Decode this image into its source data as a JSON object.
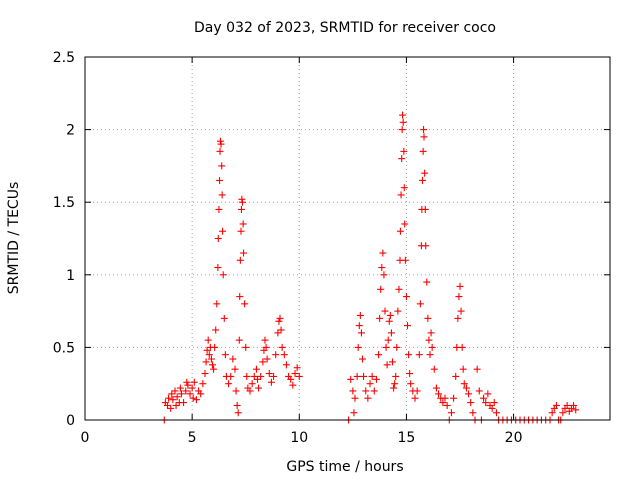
{
  "chart_data": {
    "type": "scatter",
    "title": "Day 032 of 2023, SRMTID for receiver coco",
    "xlabel": "GPS time / hours",
    "ylabel": "SRMTID / TECUs",
    "xlim": [
      0,
      24.5
    ],
    "ylim": [
      0,
      2.5
    ],
    "xticks": [
      0,
      5,
      10,
      15,
      20
    ],
    "xtick_labels": [
      "0",
      "5",
      "10",
      "15",
      "20"
    ],
    "yticks": [
      0,
      0.5,
      1,
      1.5,
      2,
      2.5
    ],
    "ytick_labels": [
      "0",
      "0.5",
      "1",
      "1.5",
      "2",
      "2.5"
    ],
    "grid": true,
    "marker": "+",
    "marker_color": "#ff0000",
    "series": [
      {
        "name": "SRMTID",
        "points": [
          [
            3.7,
            0.0
          ],
          [
            3.75,
            0.12
          ],
          [
            3.85,
            0.1
          ],
          [
            3.9,
            0.15
          ],
          [
            4.0,
            0.08
          ],
          [
            4.05,
            0.18
          ],
          [
            4.1,
            0.14
          ],
          [
            4.2,
            0.2
          ],
          [
            4.25,
            0.1
          ],
          [
            4.3,
            0.16
          ],
          [
            4.4,
            0.12
          ],
          [
            4.45,
            0.22
          ],
          [
            4.5,
            0.18
          ],
          [
            4.6,
            0.12
          ],
          [
            4.7,
            0.2
          ],
          [
            4.75,
            0.26
          ],
          [
            4.8,
            0.24
          ],
          [
            4.9,
            0.18
          ],
          [
            5.0,
            0.22
          ],
          [
            5.05,
            0.15
          ],
          [
            5.1,
            0.26
          ],
          [
            5.2,
            0.14
          ],
          [
            5.3,
            0.2
          ],
          [
            5.4,
            0.18
          ],
          [
            5.5,
            0.25
          ],
          [
            5.6,
            0.32
          ],
          [
            5.65,
            0.4
          ],
          [
            5.7,
            0.48
          ],
          [
            5.75,
            0.55
          ],
          [
            5.8,
            0.45
          ],
          [
            5.85,
            0.5
          ],
          [
            5.9,
            0.42
          ],
          [
            5.95,
            0.38
          ],
          [
            6.0,
            0.35
          ],
          [
            6.05,
            0.5
          ],
          [
            6.1,
            0.62
          ],
          [
            6.15,
            0.8
          ],
          [
            6.2,
            1.05
          ],
          [
            6.22,
            1.25
          ],
          [
            6.25,
            1.45
          ],
          [
            6.28,
            1.65
          ],
          [
            6.3,
            1.85
          ],
          [
            6.32,
            1.92
          ],
          [
            6.35,
            1.9
          ],
          [
            6.38,
            1.75
          ],
          [
            6.4,
            1.55
          ],
          [
            6.42,
            1.3
          ],
          [
            6.45,
            1.0
          ],
          [
            6.5,
            0.7
          ],
          [
            6.55,
            0.45
          ],
          [
            6.6,
            0.3
          ],
          [
            6.7,
            0.25
          ],
          [
            6.8,
            0.3
          ],
          [
            6.9,
            0.42
          ],
          [
            7.0,
            0.35
          ],
          [
            7.05,
            0.2
          ],
          [
            7.1,
            0.1
          ],
          [
            7.15,
            0.05
          ],
          [
            7.2,
            0.55
          ],
          [
            7.22,
            0.85
          ],
          [
            7.25,
            1.1
          ],
          [
            7.28,
            1.3
          ],
          [
            7.3,
            1.45
          ],
          [
            7.32,
            1.52
          ],
          [
            7.35,
            1.5
          ],
          [
            7.38,
            1.35
          ],
          [
            7.4,
            1.15
          ],
          [
            7.45,
            0.8
          ],
          [
            7.5,
            0.5
          ],
          [
            7.55,
            0.3
          ],
          [
            7.6,
            0.22
          ],
          [
            7.7,
            0.2
          ],
          [
            7.8,
            0.25
          ],
          [
            7.9,
            0.3
          ],
          [
            8.0,
            0.35
          ],
          [
            8.05,
            0.28
          ],
          [
            8.1,
            0.22
          ],
          [
            8.2,
            0.3
          ],
          [
            8.3,
            0.4
          ],
          [
            8.35,
            0.48
          ],
          [
            8.4,
            0.55
          ],
          [
            8.45,
            0.5
          ],
          [
            8.5,
            0.42
          ],
          [
            8.6,
            0.32
          ],
          [
            8.7,
            0.26
          ],
          [
            8.8,
            0.3
          ],
          [
            8.9,
            0.45
          ],
          [
            9.0,
            0.6
          ],
          [
            9.05,
            0.68
          ],
          [
            9.1,
            0.7
          ],
          [
            9.15,
            0.62
          ],
          [
            9.2,
            0.5
          ],
          [
            9.3,
            0.45
          ],
          [
            9.4,
            0.38
          ],
          [
            9.5,
            0.3
          ],
          [
            9.6,
            0.28
          ],
          [
            9.7,
            0.24
          ],
          [
            9.8,
            0.32
          ],
          [
            9.9,
            0.36
          ],
          [
            10.0,
            0.3
          ],
          [
            12.3,
            0.0
          ],
          [
            12.4,
            0.28
          ],
          [
            12.5,
            0.2
          ],
          [
            12.55,
            0.05
          ],
          [
            12.6,
            0.15
          ],
          [
            12.7,
            0.3
          ],
          [
            12.75,
            0.5
          ],
          [
            12.8,
            0.65
          ],
          [
            12.85,
            0.72
          ],
          [
            12.9,
            0.6
          ],
          [
            12.95,
            0.42
          ],
          [
            13.0,
            0.3
          ],
          [
            13.1,
            0.2
          ],
          [
            13.2,
            0.15
          ],
          [
            13.3,
            0.25
          ],
          [
            13.4,
            0.3
          ],
          [
            13.5,
            0.2
          ],
          [
            13.6,
            0.28
          ],
          [
            13.7,
            0.45
          ],
          [
            13.75,
            0.7
          ],
          [
            13.8,
            0.9
          ],
          [
            13.85,
            1.05
          ],
          [
            13.9,
            1.15
          ],
          [
            13.95,
            1.0
          ],
          [
            14.0,
            0.75
          ],
          [
            14.05,
            0.5
          ],
          [
            14.1,
            0.38
          ],
          [
            14.15,
            0.55
          ],
          [
            14.2,
            0.68
          ],
          [
            14.25,
            0.72
          ],
          [
            14.3,
            0.6
          ],
          [
            14.35,
            0.4
          ],
          [
            14.4,
            0.22
          ],
          [
            14.45,
            0.25
          ],
          [
            14.5,
            0.3
          ],
          [
            14.55,
            0.5
          ],
          [
            14.6,
            0.75
          ],
          [
            14.65,
            0.9
          ],
          [
            14.7,
            1.1
          ],
          [
            14.72,
            1.3
          ],
          [
            14.75,
            1.55
          ],
          [
            14.78,
            1.8
          ],
          [
            14.8,
            2.0
          ],
          [
            14.82,
            2.1
          ],
          [
            14.85,
            2.05
          ],
          [
            14.88,
            1.85
          ],
          [
            14.9,
            1.6
          ],
          [
            14.92,
            1.35
          ],
          [
            14.95,
            1.1
          ],
          [
            15.0,
            0.85
          ],
          [
            15.05,
            0.65
          ],
          [
            15.1,
            0.45
          ],
          [
            15.15,
            0.32
          ],
          [
            15.2,
            0.25
          ],
          [
            15.3,
            0.2
          ],
          [
            15.4,
            0.15
          ],
          [
            15.5,
            0.2
          ],
          [
            15.6,
            0.45
          ],
          [
            15.65,
            0.8
          ],
          [
            15.7,
            1.2
          ],
          [
            15.72,
            1.45
          ],
          [
            15.75,
            1.65
          ],
          [
            15.78,
            1.85
          ],
          [
            15.8,
            2.0
          ],
          [
            15.82,
            1.95
          ],
          [
            15.85,
            1.7
          ],
          [
            15.88,
            1.45
          ],
          [
            15.9,
            1.2
          ],
          [
            15.95,
            0.95
          ],
          [
            16.0,
            0.7
          ],
          [
            16.05,
            0.55
          ],
          [
            16.1,
            0.45
          ],
          [
            16.15,
            0.6
          ],
          [
            16.2,
            0.5
          ],
          [
            16.3,
            0.35
          ],
          [
            16.4,
            0.22
          ],
          [
            16.5,
            0.18
          ],
          [
            16.6,
            0.15
          ],
          [
            16.7,
            0.12
          ],
          [
            16.8,
            0.15
          ],
          [
            16.9,
            0.1
          ],
          [
            17.0,
            0.0
          ],
          [
            17.1,
            0.05
          ],
          [
            17.2,
            0.15
          ],
          [
            17.3,
            0.3
          ],
          [
            17.35,
            0.5
          ],
          [
            17.4,
            0.7
          ],
          [
            17.45,
            0.85
          ],
          [
            17.5,
            0.92
          ],
          [
            17.55,
            0.75
          ],
          [
            17.6,
            0.5
          ],
          [
            17.65,
            0.35
          ],
          [
            17.7,
            0.25
          ],
          [
            17.8,
            0.22
          ],
          [
            17.9,
            0.18
          ],
          [
            18.0,
            0.12
          ],
          [
            18.1,
            0.05
          ],
          [
            18.2,
            0.0
          ],
          [
            18.3,
            0.35
          ],
          [
            18.4,
            0.2
          ],
          [
            18.5,
            0.0
          ],
          [
            18.6,
            0.15
          ],
          [
            18.7,
            0.12
          ],
          [
            18.8,
            0.18
          ],
          [
            18.9,
            0.1
          ],
          [
            19.0,
            0.08
          ],
          [
            19.1,
            0.12
          ],
          [
            19.2,
            0.05
          ],
          [
            19.3,
            0.0
          ],
          [
            19.5,
            0.0
          ],
          [
            19.7,
            0.0
          ],
          [
            19.9,
            0.0
          ],
          [
            20.1,
            0.0
          ],
          [
            20.3,
            0.0
          ],
          [
            20.5,
            0.0
          ],
          [
            20.7,
            0.0
          ],
          [
            20.9,
            0.0
          ],
          [
            21.1,
            0.0
          ],
          [
            21.3,
            0.0
          ],
          [
            21.5,
            0.0
          ],
          [
            21.7,
            0.0
          ],
          [
            21.8,
            0.05
          ],
          [
            21.9,
            0.08
          ],
          [
            22.0,
            0.1
          ],
          [
            22.1,
            0.0
          ],
          [
            22.2,
            0.0
          ],
          [
            22.3,
            0.05
          ],
          [
            22.4,
            0.08
          ],
          [
            22.5,
            0.1
          ],
          [
            22.6,
            0.06
          ],
          [
            22.7,
            0.08
          ],
          [
            22.8,
            0.1
          ],
          [
            22.9,
            0.07
          ]
        ]
      }
    ]
  }
}
